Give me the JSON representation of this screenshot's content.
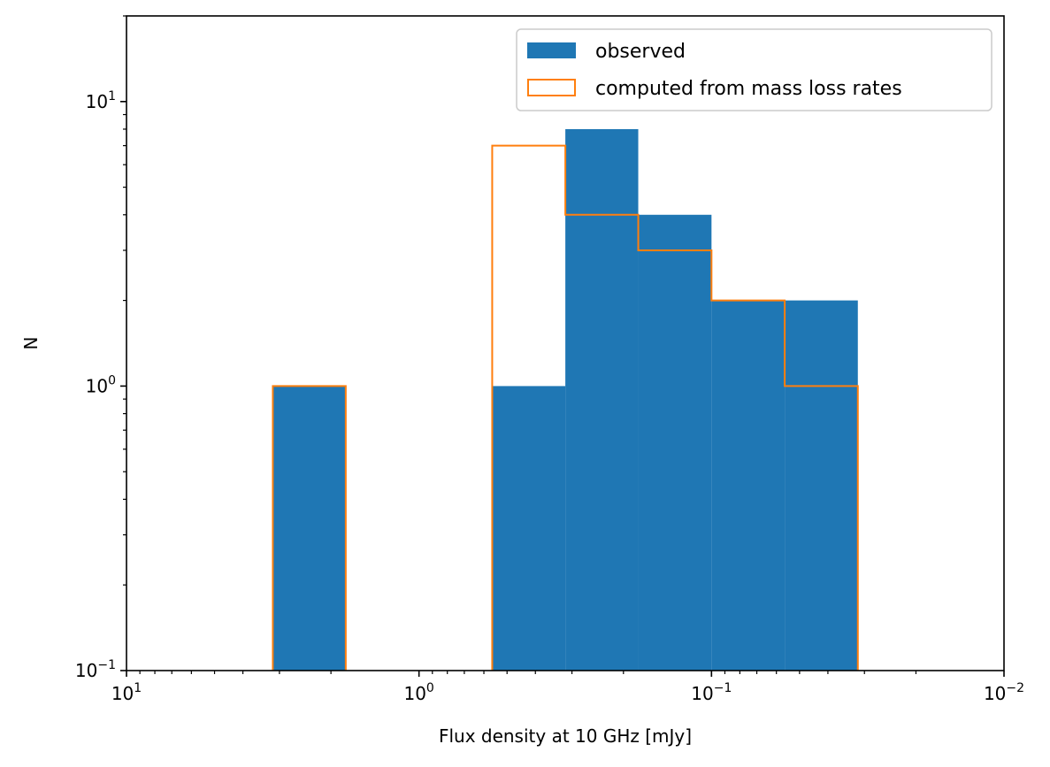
{
  "chart_data": {
    "type": "histogram",
    "xlabel": "Flux density at 10 GHz [mJy]",
    "ylabel": "N",
    "x_scale": "log",
    "x_inverted": true,
    "y_scale": "log",
    "xlim": [
      10,
      0.01
    ],
    "ylim": [
      0.1,
      20
    ],
    "x_ticks": [
      {
        "value": 10,
        "label": "10",
        "exp": "1"
      },
      {
        "value": 1,
        "label": "10",
        "exp": "0"
      },
      {
        "value": 0.1,
        "label": "10",
        "exp": "−1"
      },
      {
        "value": 0.01,
        "label": "10",
        "exp": "−2"
      }
    ],
    "y_ticks": [
      {
        "value": 0.1,
        "label": "10",
        "exp": "−1"
      },
      {
        "value": 1,
        "label": "10",
        "exp": "0"
      },
      {
        "value": 10,
        "label": "10",
        "exp": "1"
      }
    ],
    "bin_edges": [
      3.16,
      1.78,
      1.0,
      0.562,
      0.316,
      0.178,
      0.1,
      0.0562,
      0.0316
    ],
    "series": [
      {
        "name": "observed",
        "style": "filled",
        "color": "#1f77b4",
        "counts": [
          1,
          0,
          0,
          1,
          8,
          4,
          2,
          2
        ]
      },
      {
        "name": "computed from mass loss rates",
        "style": "step",
        "color": "#ff7f0e",
        "counts": [
          1,
          0,
          0,
          7,
          4,
          3,
          2,
          1
        ]
      }
    ],
    "legend_position": "upper-right",
    "grid": false
  }
}
